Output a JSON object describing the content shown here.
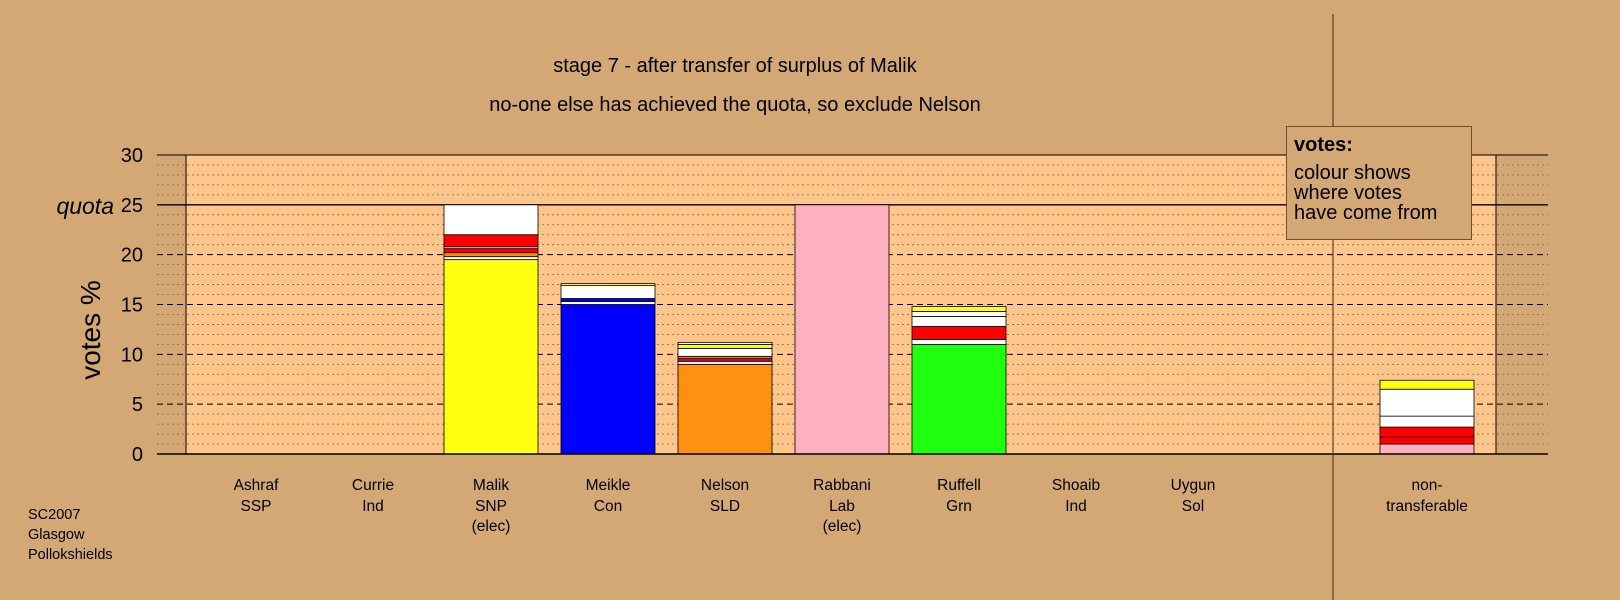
{
  "chart_data": {
    "type": "bar",
    "stacked": true,
    "title": "stage 7 - after transfer of surplus of Malik",
    "subtitle": "no-one else has achieved the quota, so exclude Nelson",
    "ylabel": "votes %",
    "ylim": [
      0,
      30
    ],
    "yticks": [
      "0",
      "5",
      "10",
      "15",
      "20",
      "25",
      "30"
    ],
    "quota": {
      "value": 25,
      "label": "quota"
    },
    "categories": [
      {
        "name": "Ashraf",
        "party": "SSP",
        "note": "",
        "segments": []
      },
      {
        "name": "Currie",
        "party": "Ind",
        "note": "",
        "segments": []
      },
      {
        "name": "Malik",
        "party": "SNP",
        "note": "(elec)",
        "segments": [
          {
            "value": 19.5,
            "color": "#ffff10"
          },
          {
            "value": 0.3,
            "color": "#ffffff"
          },
          {
            "value": 0.4,
            "color": "#ff8c00"
          },
          {
            "value": 0.4,
            "color": "#ff0000"
          },
          {
            "value": 0.2,
            "color": "#ffb0c0"
          },
          {
            "value": 1.2,
            "color": "#ff0000"
          },
          {
            "value": 3.0,
            "color": "#ffffff"
          }
        ]
      },
      {
        "name": "Meikle",
        "party": "Con",
        "note": "",
        "segments": [
          {
            "value": 15.0,
            "color": "#0000ff"
          },
          {
            "value": 0.3,
            "color": "#ffffff"
          },
          {
            "value": 0.3,
            "color": "#0000ff"
          },
          {
            "value": 1.3,
            "color": "#ffffff"
          },
          {
            "value": 0.2,
            "color": "#ffff10"
          }
        ]
      },
      {
        "name": "Nelson",
        "party": "SLD",
        "note": "",
        "segments": [
          {
            "value": 9.0,
            "color": "#ff9010"
          },
          {
            "value": 0.3,
            "color": "#ffffff"
          },
          {
            "value": 0.3,
            "color": "#ff0000"
          },
          {
            "value": 0.2,
            "color": "#ff9010"
          },
          {
            "value": 0.8,
            "color": "#ffffff"
          },
          {
            "value": 0.4,
            "color": "#ffff10"
          },
          {
            "value": 0.2,
            "color": "#ffffff"
          }
        ]
      },
      {
        "name": "Rabbani",
        "party": "Lab",
        "note": "(elec)",
        "segments": [
          {
            "value": 25.0,
            "color": "#ffb0c0"
          }
        ]
      },
      {
        "name": "Ruffell",
        "party": "Grn",
        "note": "",
        "segments": [
          {
            "value": 11.0,
            "color": "#20ff10"
          },
          {
            "value": 0.5,
            "color": "#ffffff"
          },
          {
            "value": 1.3,
            "color": "#ff0000"
          },
          {
            "value": 1.0,
            "color": "#ffffff"
          },
          {
            "value": 0.5,
            "color": "#ffffff"
          },
          {
            "value": 0.5,
            "color": "#ffff10"
          }
        ]
      },
      {
        "name": "Shoaib",
        "party": "Ind",
        "note": "",
        "segments": []
      },
      {
        "name": "Uygun",
        "party": "Sol",
        "note": "",
        "segments": []
      },
      {
        "name": "non-",
        "party": "transferable",
        "note": "",
        "segments": [
          {
            "value": 1.0,
            "color": "#ffb0c0"
          },
          {
            "value": 0.7,
            "color": "#ff0000"
          },
          {
            "value": 1.0,
            "color": "#ff0000"
          },
          {
            "value": 1.1,
            "color": "#ffffff"
          },
          {
            "value": 2.7,
            "color": "#ffffff"
          },
          {
            "value": 0.9,
            "color": "#ffff10"
          }
        ]
      }
    ],
    "legend": {
      "title": "votes:",
      "lines": [
        "colour shows",
        "where votes",
        "have come from"
      ],
      "placement": "top-right"
    },
    "grid": true
  },
  "footer": {
    "lines": [
      "SC2007",
      "Glasgow",
      "Pollokshields"
    ]
  }
}
